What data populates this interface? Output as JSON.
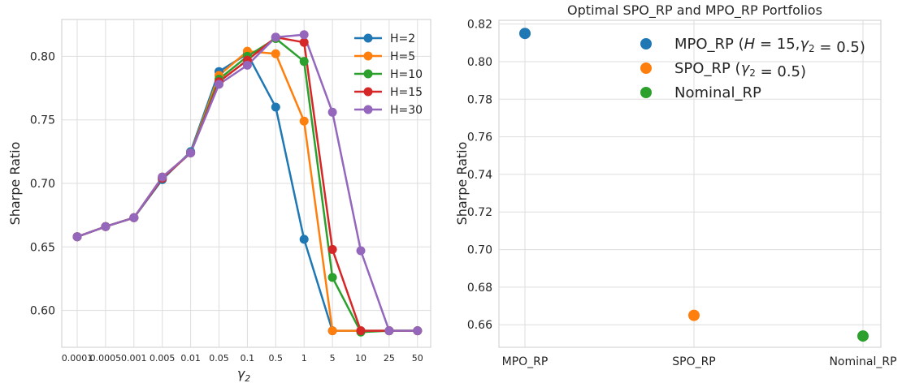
{
  "chart_data": [
    {
      "type": "line",
      "title": "",
      "xlabel": "γ",
      "xlabel_sub": "2",
      "ylabel": "Sharpe Ratio",
      "categories": [
        "0.0001",
        "0.0005",
        "0.001",
        "0.005",
        "0.01",
        "0.05",
        "0.1",
        "0.5",
        "1",
        "5",
        "10",
        "25",
        "50"
      ],
      "ylim": [
        0.571,
        0.829
      ],
      "yticks": [
        "0.60",
        "0.65",
        "0.70",
        "0.75",
        "0.80"
      ],
      "ytick_values": [
        0.6,
        0.65,
        0.7,
        0.75,
        0.8
      ],
      "grid": true,
      "legend_position": "top-right",
      "series": [
        {
          "name": "H=2",
          "color": "#1f77b4",
          "values": [
            0.658,
            0.666,
            0.673,
            0.703,
            0.725,
            0.788,
            0.802,
            0.76,
            0.656,
            0.584,
            0.584,
            0.584,
            0.584
          ]
        },
        {
          "name": "H=5",
          "color": "#ff7f0e",
          "values": [
            0.658,
            0.666,
            0.673,
            0.705,
            0.724,
            0.785,
            0.804,
            0.802,
            0.749,
            0.584,
            0.584,
            0.584,
            0.584
          ]
        },
        {
          "name": "H=10",
          "color": "#2ca02c",
          "values": [
            0.658,
            0.666,
            0.673,
            0.704,
            0.724,
            0.782,
            0.8,
            0.814,
            0.796,
            0.626,
            0.583,
            0.584,
            0.584
          ]
        },
        {
          "name": "H=15",
          "color": "#d62728",
          "values": [
            0.658,
            0.666,
            0.673,
            0.704,
            0.724,
            0.78,
            0.797,
            0.815,
            0.811,
            0.648,
            0.584,
            0.584,
            0.584
          ]
        },
        {
          "name": "H=30",
          "color": "#9467bd",
          "values": [
            0.658,
            0.666,
            0.673,
            0.705,
            0.724,
            0.778,
            0.793,
            0.815,
            0.817,
            0.756,
            0.647,
            0.584,
            0.584
          ]
        }
      ]
    },
    {
      "type": "scatter",
      "title": "Optimal SPO_RP and MPO_RP Portfolios",
      "xlabel": "",
      "ylabel": "Sharpe Ratio",
      "categories": [
        "MPO_RP",
        "SPO_RP",
        "Nominal_RP"
      ],
      "ylim": [
        0.648,
        0.822
      ],
      "yticks": [
        "0.66",
        "0.68",
        "0.70",
        "0.72",
        "0.74",
        "0.76",
        "0.78",
        "0.80",
        "0.82"
      ],
      "ytick_values": [
        0.66,
        0.68,
        0.7,
        0.72,
        0.74,
        0.76,
        0.78,
        0.8,
        0.82
      ],
      "grid": true,
      "legend_position": "top-right",
      "series": [
        {
          "name": "MPO_RP (H = 15,γ2 = 0.5)",
          "label_parts": [
            "MPO_RP (",
            "H",
            " = 15,",
            "γ",
            "2",
            " = 0.5)"
          ],
          "color": "#1f77b4",
          "category": "MPO_RP",
          "value": 0.815
        },
        {
          "name": "SPO_RP (γ2 = 0.5)",
          "label_parts": [
            "SPO_RP (",
            "γ",
            "2",
            " = 0.5)"
          ],
          "color": "#ff7f0e",
          "category": "SPO_RP",
          "value": 0.665
        },
        {
          "name": "Nominal_RP",
          "label_parts": [
            "Nominal_RP"
          ],
          "color": "#2ca02c",
          "category": "Nominal_RP",
          "value": 0.654
        }
      ]
    }
  ]
}
